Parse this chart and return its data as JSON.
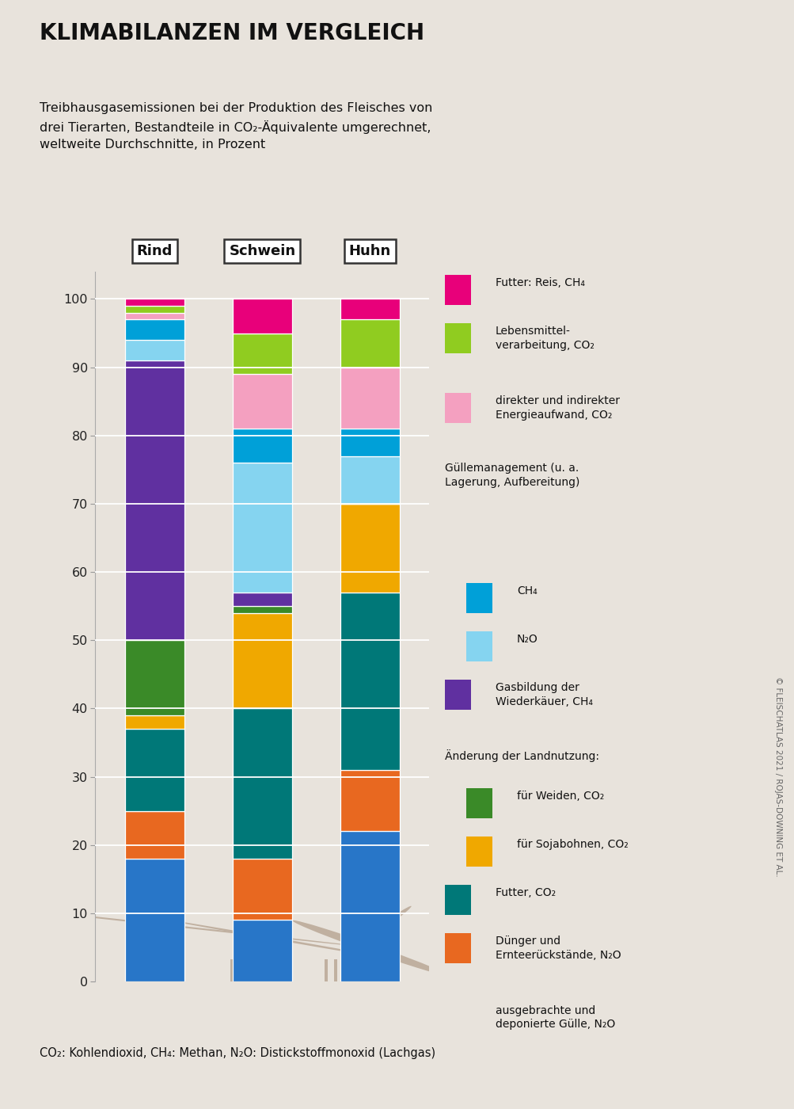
{
  "title": "KLIMABILANZEN IM VERGLEICH",
  "subtitle_line1": "Treibhausgasemissionen bei der Produktion des Fleisches von",
  "subtitle_line2": "drei Tierarten, Bestandteile in CO₂-Äquivalente umgerechnet,",
  "subtitle_line3": "weltweite Durchschnitte, in Prozent",
  "footnote": "CO₂: Kohlendioxid, CH₄: Methan, N₂O: Distickstoffmonoxid (Lachgas)",
  "attribution": "© FLEISCHATLAS 2021 / ROJAS-DOWNING ET AL.",
  "categories": [
    "Rind",
    "Schwein",
    "Huhn"
  ],
  "background_color": "#e8e3dc",
  "bar_width": 0.55,
  "layers": [
    {
      "label": "ausgebrachte und\ndeponierte Gülle, N₂O",
      "color": "#2876c8",
      "values": [
        18,
        9,
        22
      ]
    },
    {
      "label": "Dünger und\nErnteerückstände, N₂O",
      "color": "#e86820",
      "values": [
        7,
        9,
        9
      ]
    },
    {
      "label": "Futter, CO₂",
      "color": "#007878",
      "values": [
        12,
        22,
        26
      ]
    },
    {
      "label": "für Sojabohnen, CO₂",
      "color": "#f0a800",
      "values": [
        2,
        14,
        13
      ]
    },
    {
      "label": "für Weiden, CO₂",
      "color": "#3a8a28",
      "values": [
        11,
        1,
        0
      ]
    },
    {
      "label": "Gasbildung der\nWiederkäuer, CH₄",
      "color": "#6030a0",
      "values": [
        41,
        2,
        0
      ]
    },
    {
      "label": "Güllemanagement N₂O",
      "color": "#85d4f0",
      "values": [
        3,
        19,
        7
      ]
    },
    {
      "label": "Güllemanagement CH₄",
      "color": "#00a0d8",
      "values": [
        3,
        5,
        4
      ]
    },
    {
      "label": "direkter und indirekter\nEnergieaufwand, CO₂",
      "color": "#f4a0c0",
      "values": [
        1,
        8,
        9
      ]
    },
    {
      "label": "Lebensmittel-\nverarbeitung, CO₂",
      "color": "#90cc20",
      "values": [
        1,
        6,
        7
      ]
    },
    {
      "label": "Futter: Reis, CH₄",
      "color": "#e8007a",
      "values": [
        1,
        5,
        3
      ]
    }
  ],
  "legend_items": [
    {
      "color": "#e8007a",
      "label": "Futter: Reis, CH₄",
      "type": "item"
    },
    {
      "color": "#90cc20",
      "label": "Lebensmittel-\nverarbeitung, CO₂",
      "type": "item"
    },
    {
      "color": "#f4a0c0",
      "label": "direkter und indirekter\nEnergieaufwand, CO₂",
      "type": "item"
    },
    {
      "color": null,
      "label": "Güllemanagement (u. a.\nLagerung, Aufbereitung)",
      "type": "header"
    },
    {
      "color": "#00a0d8",
      "label": "CH₄",
      "type": "subitem"
    },
    {
      "color": "#85d4f0",
      "label": "N₂O",
      "type": "subitem"
    },
    {
      "color": "#6030a0",
      "label": "Gasbildung der\nWiederkäuer, CH₄",
      "type": "item"
    },
    {
      "color": null,
      "label": "Änderung der Landnutzung:",
      "type": "header"
    },
    {
      "color": "#3a8a28",
      "label": "für Weiden, CO₂",
      "type": "subitem"
    },
    {
      "color": "#f0a800",
      "label": "für Sojabohnen, CO₂",
      "type": "subitem"
    },
    {
      "color": "#007878",
      "label": "Futter, CO₂",
      "type": "item"
    },
    {
      "color": "#e86820",
      "label": "Dünger und\nErnteerückstände, N₂O",
      "type": "item"
    },
    {
      "color": "#2876c8",
      "label": "ausgebrachte und\ndeponierte Gülle, N₂O",
      "type": "item"
    }
  ]
}
